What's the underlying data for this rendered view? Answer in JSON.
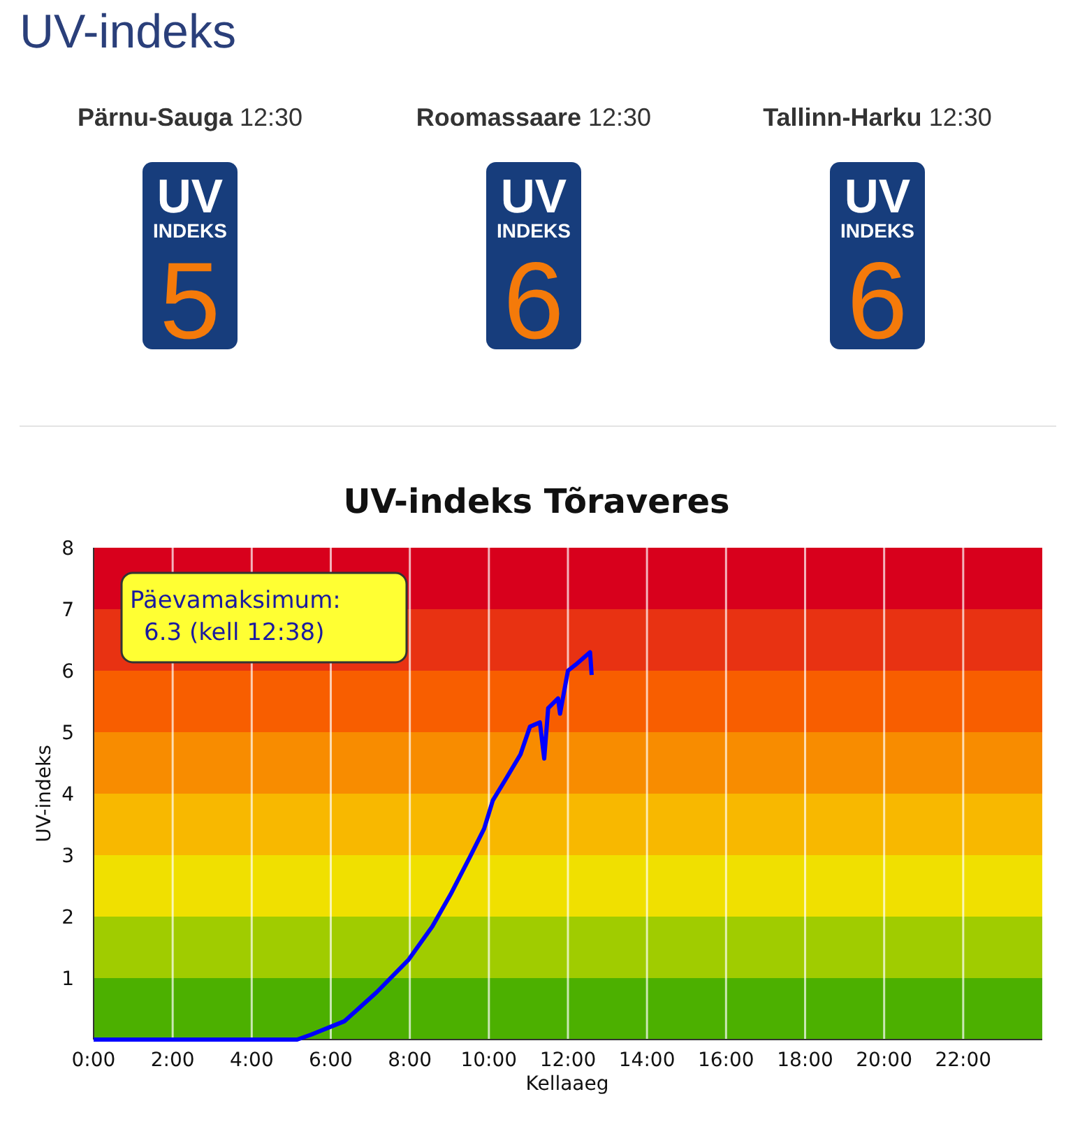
{
  "chart_data": [
    {
      "type": "other",
      "title": "UV-indeks",
      "categories": [
        "Pärnu-Sauga",
        "Roomassaare",
        "Tallinn-Harku"
      ],
      "values": [
        5,
        6,
        6
      ],
      "data_labels": true,
      "annotations": [
        "12:30",
        "12:30",
        "12:30",
        "UV",
        "INDEKS"
      ]
    },
    {
      "type": "line",
      "title": "UV-indeks Tõraveres",
      "xlabel": "Kellaaeg",
      "ylabel": "UV-indeks",
      "xlim": [
        0,
        24
      ],
      "xticks": [
        {
          "value": 0,
          "label": "0:00"
        },
        {
          "value": 2,
          "label": "2:00"
        },
        {
          "value": 4,
          "label": "4:00"
        },
        {
          "value": 6,
          "label": "6:00"
        },
        {
          "value": 8,
          "label": "8:00"
        },
        {
          "value": 10,
          "label": "10:00"
        },
        {
          "value": 12,
          "label": "12:00"
        },
        {
          "value": 14,
          "label": "14:00"
        },
        {
          "value": 16,
          "label": "16:00"
        },
        {
          "value": 18,
          "label": "18:00"
        },
        {
          "value": 20,
          "label": "20:00"
        },
        {
          "value": 22,
          "label": "22:00"
        }
      ],
      "ylim": [
        0,
        8
      ],
      "yticks": [
        1,
        2,
        3,
        4,
        5,
        6,
        7,
        8
      ],
      "grid": "x",
      "line_style": "solid",
      "bands": [
        {
          "axis": "y",
          "from": 0,
          "to": 1,
          "color": "#4cb000"
        },
        {
          "axis": "y",
          "from": 1,
          "to": 2,
          "color": "#a0cc00"
        },
        {
          "axis": "y",
          "from": 2,
          "to": 3,
          "color": "#f0e000"
        },
        {
          "axis": "y",
          "from": 3,
          "to": 4,
          "color": "#f8b800"
        },
        {
          "axis": "y",
          "from": 4,
          "to": 5,
          "color": "#f88c00"
        },
        {
          "axis": "y",
          "from": 5,
          "to": 6,
          "color": "#f85e00"
        },
        {
          "axis": "y",
          "from": 6,
          "to": 7,
          "color": "#e83212"
        },
        {
          "axis": "y",
          "from": 7,
          "to": 8,
          "color": "#d8001c"
        }
      ],
      "annotations": [
        "Päevamaksimum:\n6.3 (kell 12:38)"
      ],
      "series": [
        {
          "color": "#0000ff",
          "x": [
            0,
            5.15,
            5.5,
            6.35,
            7.16,
            7.97,
            8.57,
            9.03,
            9.52,
            9.88,
            10.1,
            10.44,
            10.8,
            11.04,
            11.29,
            11.4,
            11.5,
            11.75,
            11.8,
            12.0,
            12.2,
            12.56,
            12.6
          ],
          "values": [
            0,
            0,
            0.08,
            0.3,
            0.77,
            1.3,
            1.84,
            2.36,
            2.97,
            3.43,
            3.89,
            4.25,
            4.64,
            5.09,
            5.16,
            4.57,
            5.39,
            5.55,
            5.3,
            6.0,
            6.1,
            6.3,
            5.93
          ]
        }
      ]
    }
  ]
}
